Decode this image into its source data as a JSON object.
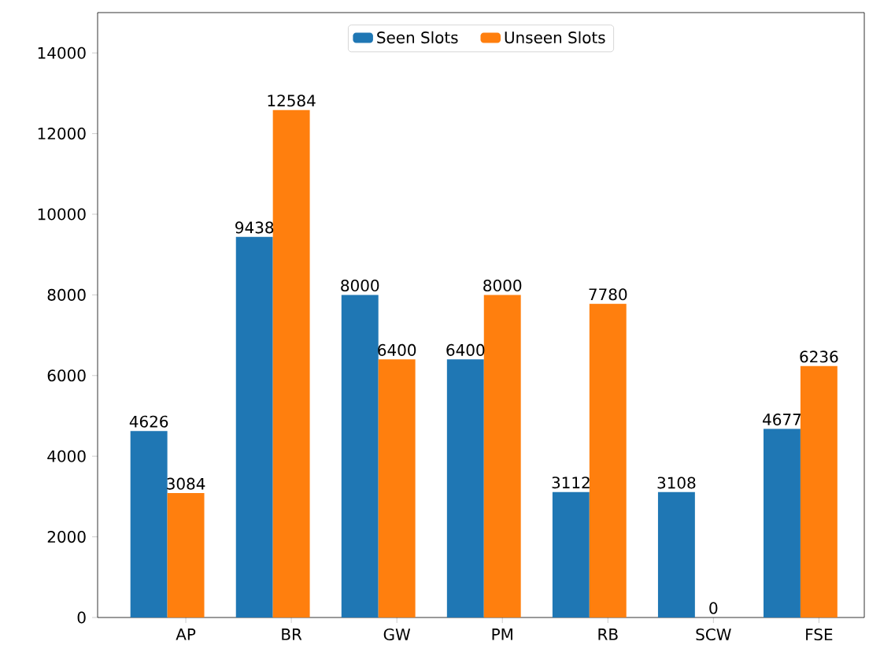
{
  "chart_data": {
    "type": "bar",
    "categories": [
      "AP",
      "BR",
      "GW",
      "PM",
      "RB",
      "SCW",
      "FSE"
    ],
    "series": [
      {
        "name": "Seen Slots",
        "color": "#1f77b4",
        "values": [
          4626,
          9438,
          8000,
          6400,
          3112,
          3108,
          4677
        ]
      },
      {
        "name": "Unseen Slots",
        "color": "#ff7f0e",
        "values": [
          3084,
          12584,
          6400,
          8000,
          7780,
          0,
          6236
        ]
      }
    ],
    "ylim": [
      0,
      15000
    ],
    "yticks": [
      0,
      2000,
      4000,
      6000,
      8000,
      10000,
      12000,
      14000
    ],
    "data_labels": true,
    "legend": "top",
    "grid": false
  }
}
